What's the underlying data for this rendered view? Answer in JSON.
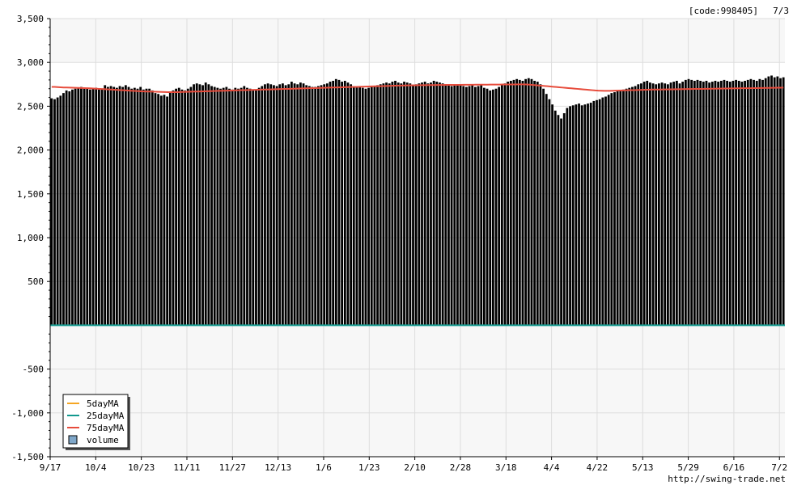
{
  "header": {
    "code_label": "[code:998405]",
    "date_label": "7/3"
  },
  "footer": {
    "source": "http://swing-trade.net"
  },
  "chart_data": {
    "type": "bar",
    "ylim": [
      -1500,
      3500
    ],
    "y_ticks": [
      {
        "value": 3500,
        "label": "3,500"
      },
      {
        "value": 3000,
        "label": "3,000"
      },
      {
        "value": 2500,
        "label": "2,500"
      },
      {
        "value": 2000,
        "label": "2,000"
      },
      {
        "value": 1500,
        "label": "1,500"
      },
      {
        "value": 1000,
        "label": "1,000"
      },
      {
        "value": 500,
        "label": "500"
      },
      {
        "value": -500,
        "label": "-500"
      },
      {
        "value": -1000,
        "label": "-1,000"
      },
      {
        "value": -1500,
        "label": "-1,500"
      }
    ],
    "x_ticks": [
      "9/17",
      "10/4",
      "10/23",
      "11/11",
      "11/27",
      "12/13",
      "1/6",
      "1/23",
      "2/10",
      "2/28",
      "3/18",
      "4/4",
      "4/22",
      "5/13",
      "5/29",
      "6/16",
      "7/2"
    ],
    "grid": true,
    "legend_position": "bottom-left",
    "legend": [
      {
        "name": "5dayMA",
        "color": "#f5a623"
      },
      {
        "name": "25dayMA",
        "color": "#11998e"
      },
      {
        "name": "75dayMA",
        "color": "#e74c3c"
      },
      {
        "name": "volume",
        "color": "#7fa7c9"
      }
    ],
    "series": [
      {
        "name": "volume",
        "color": "#000000",
        "values": [
          2590,
          2580,
          2600,
          2620,
          2650,
          2680,
          2670,
          2690,
          2700,
          2710,
          2720,
          2700,
          2710,
          2690,
          2700,
          2710,
          2690,
          2700,
          2740,
          2720,
          2730,
          2720,
          2710,
          2730,
          2720,
          2740,
          2720,
          2700,
          2710,
          2700,
          2720,
          2690,
          2700,
          2700,
          2680,
          2650,
          2640,
          2620,
          2630,
          2610,
          2660,
          2680,
          2700,
          2710,
          2690,
          2680,
          2700,
          2720,
          2750,
          2760,
          2750,
          2740,
          2770,
          2750,
          2730,
          2720,
          2710,
          2700,
          2710,
          2720,
          2700,
          2690,
          2710,
          2700,
          2710,
          2730,
          2710,
          2700,
          2680,
          2690,
          2710,
          2730,
          2750,
          2760,
          2750,
          2740,
          2730,
          2750,
          2760,
          2740,
          2750,
          2780,
          2760,
          2750,
          2770,
          2760,
          2740,
          2730,
          2720,
          2720,
          2730,
          2740,
          2750,
          2760,
          2780,
          2790,
          2810,
          2800,
          2780,
          2790,
          2770,
          2750,
          2730,
          2720,
          2730,
          2710,
          2700,
          2710,
          2720,
          2730,
          2740,
          2750,
          2760,
          2770,
          2760,
          2780,
          2790,
          2770,
          2760,
          2780,
          2770,
          2760,
          2740,
          2750,
          2760,
          2770,
          2780,
          2760,
          2770,
          2790,
          2780,
          2770,
          2760,
          2750,
          2740,
          2730,
          2740,
          2750,
          2740,
          2730,
          2720,
          2730,
          2740,
          2720,
          2730,
          2740,
          2710,
          2700,
          2680,
          2690,
          2700,
          2720,
          2740,
          2760,
          2780,
          2790,
          2800,
          2810,
          2800,
          2790,
          2810,
          2820,
          2810,
          2790,
          2780,
          2750,
          2700,
          2640,
          2580,
          2520,
          2450,
          2400,
          2360,
          2420,
          2480,
          2500,
          2510,
          2520,
          2530,
          2510,
          2520,
          2530,
          2540,
          2560,
          2570,
          2580,
          2600,
          2610,
          2630,
          2650,
          2660,
          2670,
          2680,
          2690,
          2700,
          2710,
          2720,
          2730,
          2750,
          2760,
          2780,
          2790,
          2770,
          2760,
          2750,
          2760,
          2770,
          2760,
          2750,
          2770,
          2780,
          2790,
          2760,
          2780,
          2800,
          2810,
          2800,
          2790,
          2800,
          2790,
          2780,
          2790,
          2770,
          2780,
          2790,
          2780,
          2790,
          2800,
          2790,
          2780,
          2790,
          2800,
          2790,
          2780,
          2790,
          2800,
          2810,
          2800,
          2790,
          2810,
          2800,
          2820,
          2840,
          2850,
          2830,
          2840,
          2820,
          2830
        ]
      },
      {
        "name": "75dayMA",
        "color": "#e74c3c",
        "values": [
          2720,
          2720,
          2718,
          2716,
          2714,
          2713,
          2712,
          2711,
          2710,
          2709,
          2708,
          2707,
          2706,
          2704,
          2702,
          2700,
          2698,
          2696,
          2694,
          2692,
          2690,
          2688,
          2686,
          2684,
          2682,
          2680,
          2678,
          2676,
          2674,
          2672,
          2670,
          2669,
          2668,
          2667,
          2666,
          2665,
          2664,
          2663,
          2662,
          2661,
          2660,
          2660,
          2661,
          2662,
          2663,
          2664,
          2665,
          2666,
          2667,
          2668,
          2669,
          2670,
          2671,
          2672,
          2673,
          2674,
          2675,
          2676,
          2677,
          2678,
          2679,
          2680,
          2681,
          2682,
          2683,
          2684,
          2685,
          2686,
          2687,
          2688,
          2689,
          2690,
          2691,
          2692,
          2693,
          2694,
          2695,
          2696,
          2697,
          2698,
          2699,
          2700,
          2701,
          2702,
          2703,
          2704,
          2705,
          2706,
          2707,
          2708,
          2709,
          2710,
          2711,
          2712,
          2713,
          2714,
          2715,
          2716,
          2717,
          2718,
          2719,
          2720,
          2721,
          2722,
          2723,
          2724,
          2725,
          2726,
          2727,
          2728,
          2729,
          2730,
          2731,
          2732,
          2733,
          2734,
          2735,
          2736,
          2737,
          2738,
          2738,
          2739,
          2739,
          2740,
          2740,
          2740,
          2741,
          2741,
          2741,
          2742,
          2742,
          2742,
          2743,
          2743,
          2743,
          2744,
          2744,
          2744,
          2745,
          2745,
          2745,
          2745,
          2746,
          2746,
          2746,
          2746,
          2746,
          2747,
          2747,
          2747,
          2747,
          2748,
          2748,
          2748,
          2748,
          2748,
          2749,
          2749,
          2749,
          2748,
          2746,
          2743,
          2740,
          2737,
          2734,
          2731,
          2728,
          2725,
          2722,
          2719,
          2716,
          2713,
          2710,
          2707,
          2704,
          2701,
          2698,
          2695,
          2692,
          2689,
          2686,
          2683,
          2680,
          2678,
          2677,
          2676,
          2676,
          2676,
          2677,
          2678,
          2679,
          2680,
          2681,
          2682,
          2683,
          2684,
          2685,
          2686,
          2687,
          2688,
          2689,
          2690,
          2690,
          2691,
          2691,
          2692,
          2692,
          2693,
          2693,
          2694,
          2694,
          2695,
          2695,
          2696,
          2696,
          2697,
          2697,
          2698,
          2698,
          2699,
          2699,
          2700,
          2700,
          2701,
          2701,
          2702,
          2702,
          2703,
          2703,
          2704,
          2704,
          2705,
          2705,
          2706,
          2706,
          2707,
          2707,
          2708,
          2708,
          2709,
          2709,
          2710,
          2710,
          2711,
          2711,
          2712
        ]
      },
      {
        "name": "25dayMA",
        "color": "#11998e",
        "values": [
          0,
          0
        ]
      }
    ]
  }
}
